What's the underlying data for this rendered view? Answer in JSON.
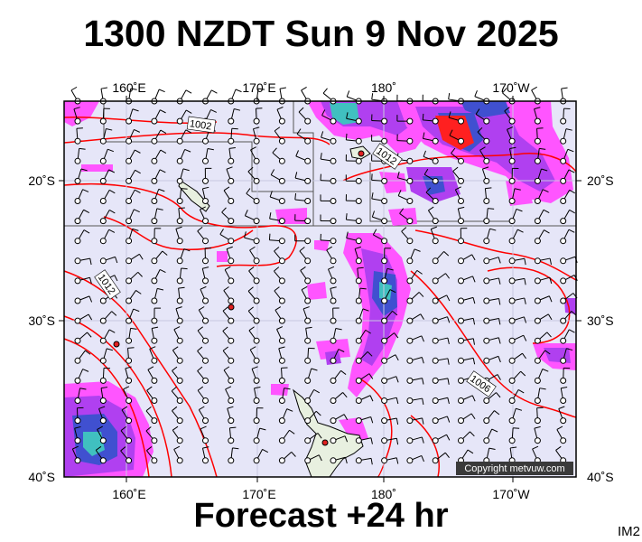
{
  "header": {
    "title": "1300 NZDT Sun 9 Nov 2025"
  },
  "footer": {
    "forecast": "Forecast +24 hr",
    "code": "IM2"
  },
  "map": {
    "lon_ticks_top": [
      "160˚E",
      "170˚E",
      "180˚",
      "170˚W"
    ],
    "lon_ticks_bottom": [
      "160˚E",
      "170˚E",
      "180˚",
      "170˚W"
    ],
    "lat_ticks_left": [
      "20˚S",
      "30˚S",
      "40˚S"
    ],
    "lat_ticks_right": [
      "20˚S",
      "30˚S",
      "40˚S"
    ],
    "isobar_labels": [
      "1002",
      "1012",
      "1012",
      "1006"
    ],
    "copyright": "Copyright metvuw.com",
    "colors": {
      "ocean": "#e6e6f8",
      "isobar": "#ff0000",
      "rain_light": "#ff55ff",
      "rain_mid": "#b040f0",
      "rain_heavy": "#4050d0",
      "rain_very_heavy": "#40c0c0",
      "rain_extreme": "#ff2020",
      "land": "#e8f0e0"
    }
  }
}
